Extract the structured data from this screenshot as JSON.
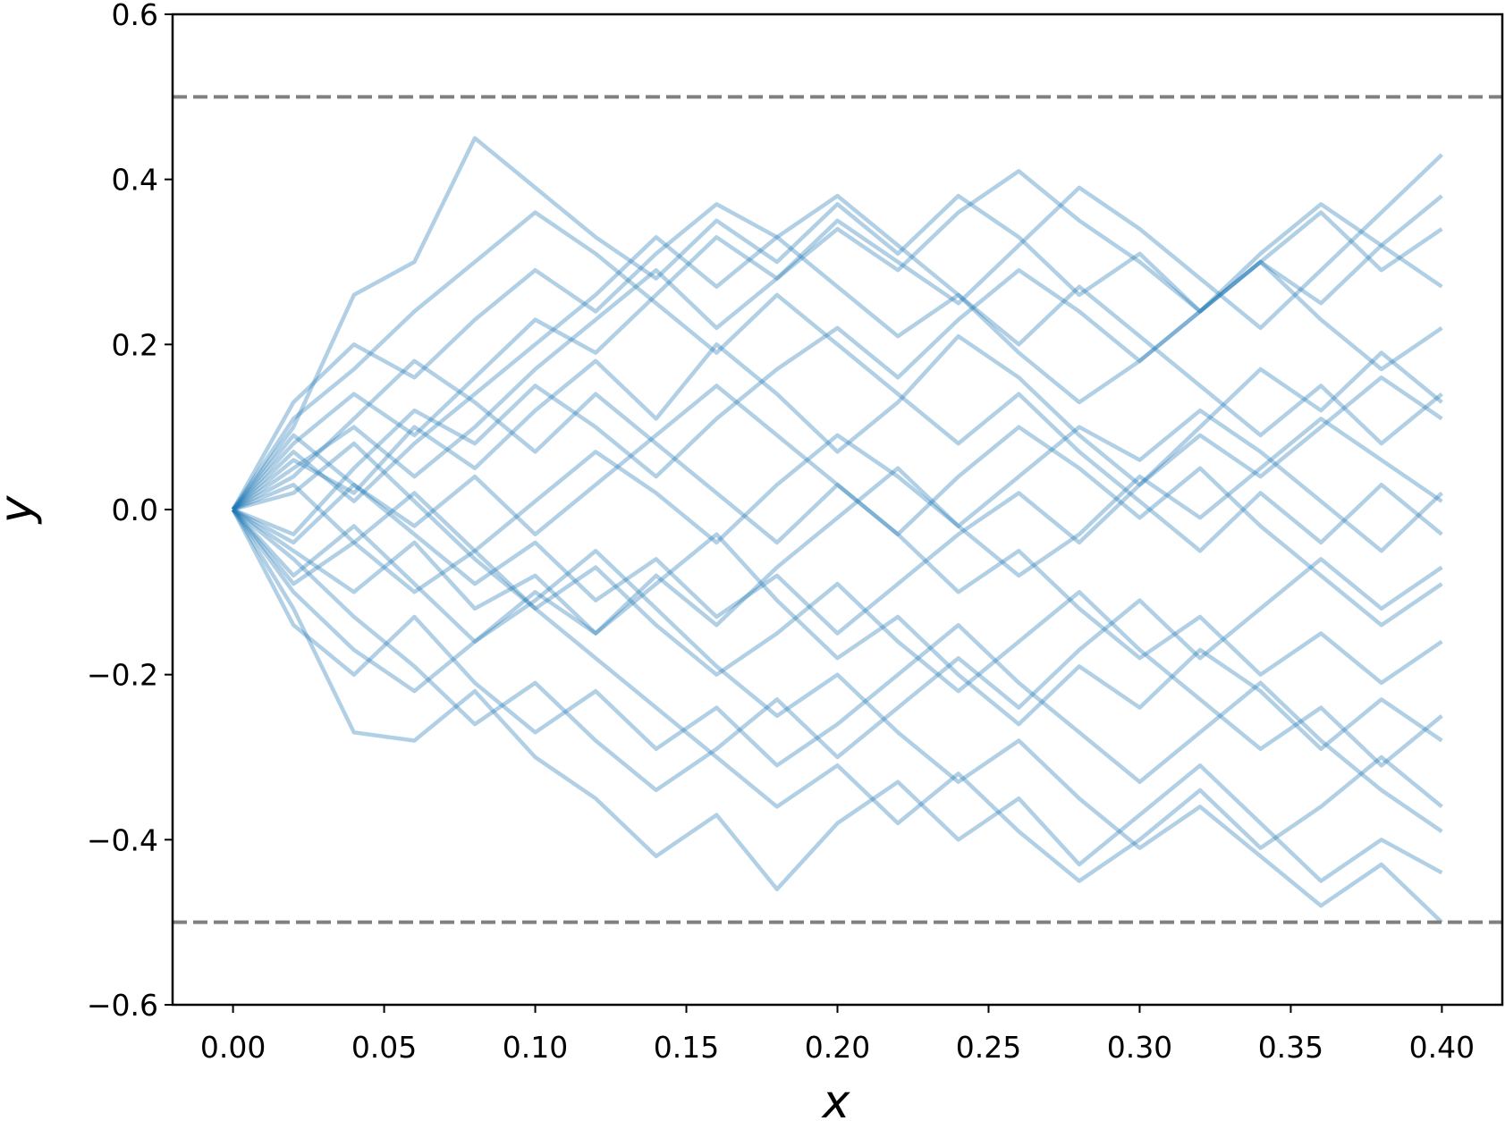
{
  "chart_data": {
    "type": "line",
    "x_label": "x",
    "y_label": "y",
    "x": [
      0,
      0.02,
      0.04,
      0.06,
      0.08,
      0.1,
      0.12,
      0.14,
      0.16,
      0.18,
      0.2,
      0.22,
      0.24,
      0.26,
      0.28,
      0.3,
      0.32,
      0.34,
      0.36,
      0.38,
      0.4
    ],
    "color": "#1f77b4",
    "alpha": 0.35,
    "series": [
      {
        "values": [
          0,
          0.1,
          0.26,
          0.3,
          0.45,
          0.39,
          0.33,
          0.28,
          0.35,
          0.3,
          0.37,
          0.31,
          0.38,
          0.33,
          0.26,
          0.31,
          0.24,
          0.3,
          0.36,
          0.29,
          0.34
        ]
      },
      {
        "values": [
          0,
          -0.12,
          -0.27,
          -0.28,
          -0.22,
          -0.3,
          -0.35,
          -0.42,
          -0.37,
          -0.46,
          -0.38,
          -0.33,
          -0.4,
          -0.35,
          -0.43,
          -0.37,
          -0.31,
          -0.38,
          -0.45,
          -0.4,
          -0.44
        ]
      },
      {
        "values": [
          0,
          0.06,
          0.02,
          0.1,
          0.05,
          0.12,
          0.18,
          0.11,
          0.2,
          0.14,
          0.07,
          0.13,
          0.21,
          0.16,
          0.09,
          0.03,
          0.1,
          0.17,
          0.12,
          0.19,
          0.13
        ]
      },
      {
        "values": [
          0,
          -0.05,
          -0.1,
          -0.04,
          -0.12,
          -0.08,
          -0.15,
          -0.09,
          -0.03,
          -0.11,
          -0.18,
          -0.13,
          -0.2,
          -0.26,
          -0.19,
          -0.24,
          -0.17,
          -0.22,
          -0.29,
          -0.23,
          -0.28
        ]
      },
      {
        "values": [
          0,
          0.08,
          0.14,
          0.09,
          0.16,
          0.23,
          0.19,
          0.26,
          0.33,
          0.28,
          0.35,
          0.3,
          0.25,
          0.32,
          0.39,
          0.34,
          0.28,
          0.22,
          0.29,
          0.36,
          0.43
        ]
      },
      {
        "values": [
          0,
          -0.08,
          -0.02,
          -0.09,
          -0.16,
          -0.11,
          -0.05,
          -0.12,
          -0.19,
          -0.25,
          -0.2,
          -0.27,
          -0.33,
          -0.28,
          -0.35,
          -0.41,
          -0.36,
          -0.42,
          -0.48,
          -0.43,
          -0.5
        ]
      },
      {
        "values": [
          0,
          0.03,
          -0.04,
          0.02,
          -0.05,
          0.01,
          0.07,
          0.02,
          -0.04,
          0.03,
          0.09,
          0.04,
          -0.02,
          -0.08,
          -0.03,
          0.04,
          -0.01,
          0.05,
          0.11,
          0.06,
          0.01
        ]
      },
      {
        "values": [
          0,
          0.13,
          0.2,
          0.16,
          0.23,
          0.29,
          0.24,
          0.31,
          0.37,
          0.33,
          0.27,
          0.21,
          0.26,
          0.19,
          0.13,
          0.18,
          0.24,
          0.3,
          0.25,
          0.32,
          0.27
        ]
      },
      {
        "values": [
          0,
          -0.1,
          -0.17,
          -0.22,
          -0.16,
          -0.1,
          -0.15,
          -0.08,
          -0.14,
          -0.07,
          -0.01,
          0.05,
          -0.02,
          0.04,
          0.1,
          0.06,
          0.12,
          0.07,
          0.01,
          -0.05,
          0.02
        ]
      },
      {
        "values": [
          0,
          0.04,
          0.11,
          0.18,
          0.13,
          0.07,
          0.14,
          0.08,
          0.02,
          -0.04,
          0.03,
          -0.03,
          -0.1,
          -0.05,
          -0.12,
          -0.18,
          -0.13,
          -0.2,
          -0.15,
          -0.21,
          -0.16
        ]
      },
      {
        "values": [
          0,
          -0.03,
          0.05,
          0.12,
          0.08,
          0.15,
          0.1,
          0.04,
          0.11,
          0.17,
          0.22,
          0.16,
          0.23,
          0.29,
          0.24,
          0.18,
          0.24,
          0.31,
          0.37,
          0.32,
          0.38
        ]
      },
      {
        "values": [
          0,
          -0.14,
          -0.2,
          -0.13,
          -0.21,
          -0.27,
          -0.22,
          -0.29,
          -0.24,
          -0.31,
          -0.26,
          -0.2,
          -0.14,
          -0.21,
          -0.27,
          -0.33,
          -0.27,
          -0.21,
          -0.28,
          -0.34,
          -0.39
        ]
      },
      {
        "values": [
          0,
          0.09,
          0.03,
          -0.03,
          -0.09,
          -0.04,
          -0.11,
          -0.06,
          -0.13,
          -0.08,
          -0.15,
          -0.09,
          -0.03,
          0.02,
          -0.04,
          0.03,
          0.09,
          0.04,
          0.1,
          0.16,
          0.11
        ]
      },
      {
        "values": [
          0,
          0.05,
          0.1,
          0.04,
          0.1,
          0.17,
          0.23,
          0.29,
          0.22,
          0.28,
          0.34,
          0.29,
          0.36,
          0.41,
          0.35,
          0.3,
          0.24,
          0.3,
          0.23,
          0.17,
          0.22
        ]
      },
      {
        "values": [
          0,
          -0.06,
          -0.13,
          -0.19,
          -0.26,
          -0.21,
          -0.28,
          -0.34,
          -0.29,
          -0.23,
          -0.3,
          -0.24,
          -0.18,
          -0.24,
          -0.17,
          -0.11,
          -0.18,
          -0.12,
          -0.06,
          -0.12,
          -0.07
        ]
      },
      {
        "values": [
          0,
          0.11,
          0.17,
          0.24,
          0.3,
          0.36,
          0.31,
          0.25,
          0.19,
          0.26,
          0.2,
          0.14,
          0.08,
          0.14,
          0.07,
          0.01,
          -0.05,
          0.02,
          -0.04,
          0.03,
          -0.03
        ]
      },
      {
        "values": [
          0,
          -0.09,
          -0.04,
          -0.1,
          -0.05,
          -0.12,
          -0.18,
          -0.24,
          -0.3,
          -0.36,
          -0.31,
          -0.38,
          -0.32,
          -0.39,
          -0.45,
          -0.4,
          -0.34,
          -0.41,
          -0.36,
          -0.3,
          -0.36
        ]
      },
      {
        "values": [
          0,
          0.02,
          0.08,
          0.01,
          -0.06,
          -0.12,
          -0.07,
          -0.14,
          -0.2,
          -0.15,
          -0.09,
          -0.16,
          -0.22,
          -0.16,
          -0.1,
          -0.17,
          -0.23,
          -0.29,
          -0.24,
          -0.31,
          -0.25
        ]
      },
      {
        "values": [
          0,
          0.07,
          0.01,
          0.08,
          0.14,
          0.2,
          0.26,
          0.33,
          0.27,
          0.33,
          0.38,
          0.32,
          0.26,
          0.2,
          0.27,
          0.21,
          0.15,
          0.09,
          0.15,
          0.08,
          0.14
        ]
      },
      {
        "values": [
          0,
          -0.04,
          0.03,
          -0.02,
          0.04,
          -0.03,
          0.03,
          0.09,
          0.15,
          0.09,
          0.03,
          -0.03,
          0.04,
          0.1,
          0.05,
          -0.01,
          0.05,
          -0.02,
          -0.08,
          -0.14,
          -0.09
        ]
      }
    ],
    "hlines": [
      0.5,
      -0.5
    ],
    "hline_color": "#808080",
    "xlim": [
      -0.02,
      0.42
    ],
    "ylim": [
      -0.6,
      0.6
    ],
    "xticks": [
      {
        "value": 0,
        "label": "0.00"
      },
      {
        "value": 0.05,
        "label": "0.05"
      },
      {
        "value": 0.1,
        "label": "0.10"
      },
      {
        "value": 0.15,
        "label": "0.15"
      },
      {
        "value": 0.2,
        "label": "0.20"
      },
      {
        "value": 0.25,
        "label": "0.25"
      },
      {
        "value": 0.3,
        "label": "0.30"
      },
      {
        "value": 0.35,
        "label": "0.35"
      },
      {
        "value": 0.4,
        "label": "0.40"
      }
    ],
    "yticks": [
      {
        "value": -0.6,
        "label": "−0.6"
      },
      {
        "value": -0.4,
        "label": "−0.4"
      },
      {
        "value": -0.2,
        "label": "−0.2"
      },
      {
        "value": 0,
        "label": "0.0"
      },
      0.2,
      0.4,
      0.6
    ]
  }
}
